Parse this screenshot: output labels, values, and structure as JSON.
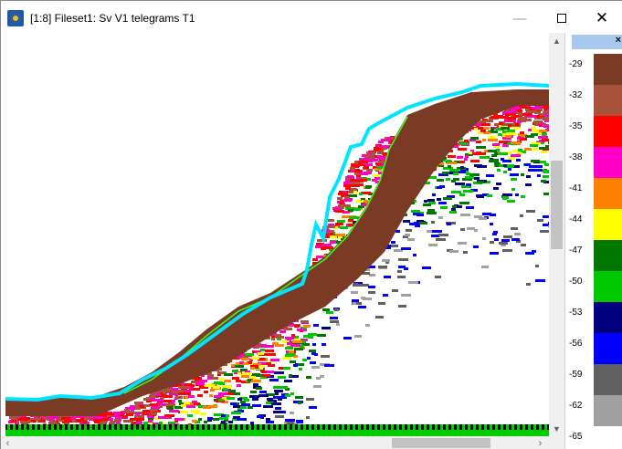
{
  "window": {
    "title": "[1:8]  Fileset1: Sv V1 telegrams T1",
    "minimize_glyph": "—",
    "close_glyph": "✕"
  },
  "scrollbars": {
    "up_glyph": "▲",
    "down_glyph": "▼",
    "left_glyph": "‹",
    "right_glyph": "›"
  },
  "color_scale": {
    "close_glyph": "×",
    "labels": [
      "-29",
      "-32",
      "-35",
      "-38",
      "-41",
      "-44",
      "-47",
      "-50",
      "-53",
      "-56",
      "-59",
      "-62",
      "-65"
    ],
    "colors": [
      "#7b3a24",
      "#a8533a",
      "#ff0000",
      "#ff00c8",
      "#ff8000",
      "#ffff00",
      "#007800",
      "#00c800",
      "#000080",
      "#0000ff",
      "#606060",
      "#a0a0a0"
    ]
  },
  "echogram": {
    "surface_line_color": "#00e5ff",
    "bottom_line_color": "#39ff14",
    "seabed_color": "#7b3a24",
    "bottom_bar_color": "#00cc00"
  }
}
